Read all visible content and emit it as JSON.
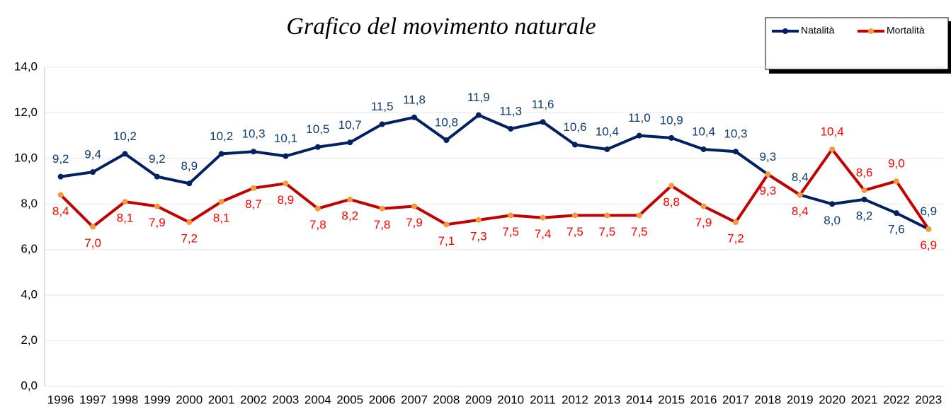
{
  "chart_data": {
    "type": "line",
    "title": "Grafico del movimento naturale",
    "categories": [
      "1996",
      "1997",
      "1998",
      "1999",
      "2000",
      "2001",
      "2002",
      "2003",
      "2004",
      "2005",
      "2006",
      "2007",
      "2008",
      "2009",
      "2010",
      "2011",
      "2012",
      "2013",
      "2014",
      "2015",
      "2016",
      "2017",
      "2018",
      "2019",
      "2020",
      "2021",
      "2022",
      "2023"
    ],
    "series": [
      {
        "name": "Natalità",
        "color": "#002060",
        "marker_color": "#002060",
        "label_color": "#0e3a6e",
        "values": [
          9.2,
          9.4,
          10.2,
          9.2,
          8.9,
          10.2,
          10.3,
          10.1,
          10.5,
          10.7,
          11.5,
          11.8,
          10.8,
          11.9,
          11.3,
          11.6,
          10.6,
          10.4,
          11.0,
          10.9,
          10.4,
          10.3,
          9.3,
          8.4,
          8.0,
          8.2,
          7.6,
          6.9
        ],
        "value_labels": [
          "9,2",
          "9,4",
          "10,2",
          "9,2",
          "8,9",
          "10,2",
          "10,3",
          "10,1",
          "10,5",
          "10,7",
          "11,5",
          "11,8",
          "10,8",
          "11,9",
          "11,3",
          "11,6",
          "10,6",
          "10,4",
          "11,0",
          "10,9",
          "10,4",
          "10,3",
          "9,3",
          "8,4",
          "8,0",
          "8,2",
          "7,6",
          "6,9"
        ]
      },
      {
        "name": "Mortalità",
        "color": "#c00000",
        "marker_color": "#f39a3c",
        "label_color": "#ff0000",
        "values": [
          8.4,
          7.0,
          8.1,
          7.9,
          7.2,
          8.1,
          8.7,
          8.9,
          7.8,
          8.2,
          7.8,
          7.9,
          7.1,
          7.3,
          7.5,
          7.4,
          7.5,
          7.5,
          7.5,
          8.8,
          7.9,
          7.2,
          9.3,
          8.4,
          10.4,
          8.6,
          9.0,
          6.9
        ],
        "value_labels": [
          "8,4",
          "7,0",
          "8,1",
          "7,9",
          "7,2",
          "8,1",
          "8,7",
          "8,9",
          "7,8",
          "8,2",
          "7,8",
          "7,9",
          "7,1",
          "7,3",
          "7,5",
          "7,4",
          "7,5",
          "7,5",
          "7,5",
          "8,8",
          "7,9",
          "7,2",
          "9,3",
          "8,4",
          "10,4",
          "8,6",
          "9,0",
          "6,9"
        ]
      }
    ],
    "ylim": [
      0,
      14
    ],
    "yticks": [
      {
        "value": 0,
        "label": "0,0"
      },
      {
        "value": 2,
        "label": "2,0"
      },
      {
        "value": 4,
        "label": "4,0"
      },
      {
        "value": 6,
        "label": "6,0"
      },
      {
        "value": 8,
        "label": "8,0"
      },
      {
        "value": 10,
        "label": "10,0"
      },
      {
        "value": 12,
        "label": "12,0"
      },
      {
        "value": 14,
        "label": "14,0"
      }
    ],
    "grid": true,
    "legend": "top-right"
  }
}
